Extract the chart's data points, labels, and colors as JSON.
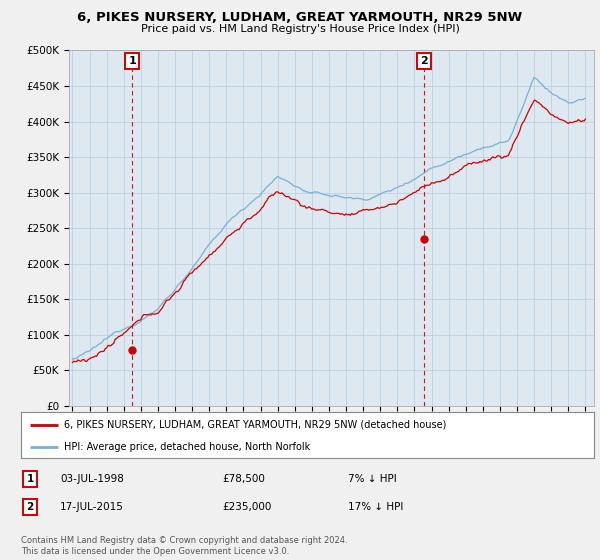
{
  "title": "6, PIKES NURSERY, LUDHAM, GREAT YARMOUTH, NR29 5NW",
  "subtitle": "Price paid vs. HM Land Registry's House Price Index (HPI)",
  "ylim": [
    0,
    500000
  ],
  "yticks": [
    0,
    50000,
    100000,
    150000,
    200000,
    250000,
    300000,
    350000,
    400000,
    450000,
    500000
  ],
  "ytick_labels": [
    "£0",
    "£50K",
    "£100K",
    "£150K",
    "£200K",
    "£250K",
    "£300K",
    "£350K",
    "£400K",
    "£450K",
    "£500K"
  ],
  "xlim_start": 1994.8,
  "xlim_end": 2025.5,
  "hpi_color": "#7ab0d4",
  "price_color": "#cc0000",
  "marker1_date": 1998.5,
  "marker1_price": 78500,
  "marker1_label": "1",
  "marker1_date_str": "03-JUL-1998",
  "marker1_amount_str": "£78,500",
  "marker1_pct_str": "7% ↓ HPI",
  "marker2_date": 2015.54,
  "marker2_price": 235000,
  "marker2_label": "2",
  "marker2_date_str": "17-JUL-2015",
  "marker2_amount_str": "£235,000",
  "marker2_pct_str": "17% ↓ HPI",
  "legend_line1": "6, PIKES NURSERY, LUDHAM, GREAT YARMOUTH, NR29 5NW (detached house)",
  "legend_line2": "HPI: Average price, detached house, North Norfolk",
  "footnote": "Contains HM Land Registry data © Crown copyright and database right 2024.\nThis data is licensed under the Open Government Licence v3.0.",
  "background_color": "#f0f0f0",
  "plot_bg_color": "#dde8f0"
}
